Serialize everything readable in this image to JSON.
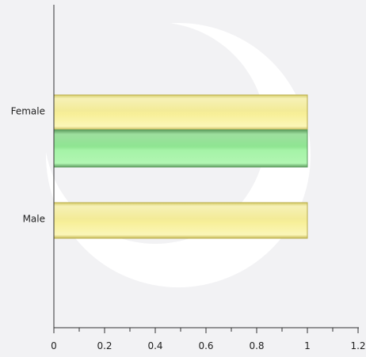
{
  "chart_data": {
    "type": "bar",
    "orientation": "horizontal",
    "categories": [
      "Female",
      "Male"
    ],
    "series": [
      {
        "values": [
          1,
          1
        ]
      },
      {
        "values": [
          1,
          null
        ]
      }
    ],
    "xlim": [
      0,
      1.2
    ],
    "x_ticks": [
      "0",
      "0.2",
      "0.4",
      "0.6",
      "0.8",
      "1",
      "1.2"
    ],
    "grid": false,
    "legend": "none",
    "colors": {
      "series_1": "#f2ea8c",
      "series_1_edge": "#b8ac4a",
      "series_2": "#93ee96",
      "series_2_edge": "#5a9a5c",
      "axis": "#333333",
      "watermark": "#ffffff"
    }
  }
}
